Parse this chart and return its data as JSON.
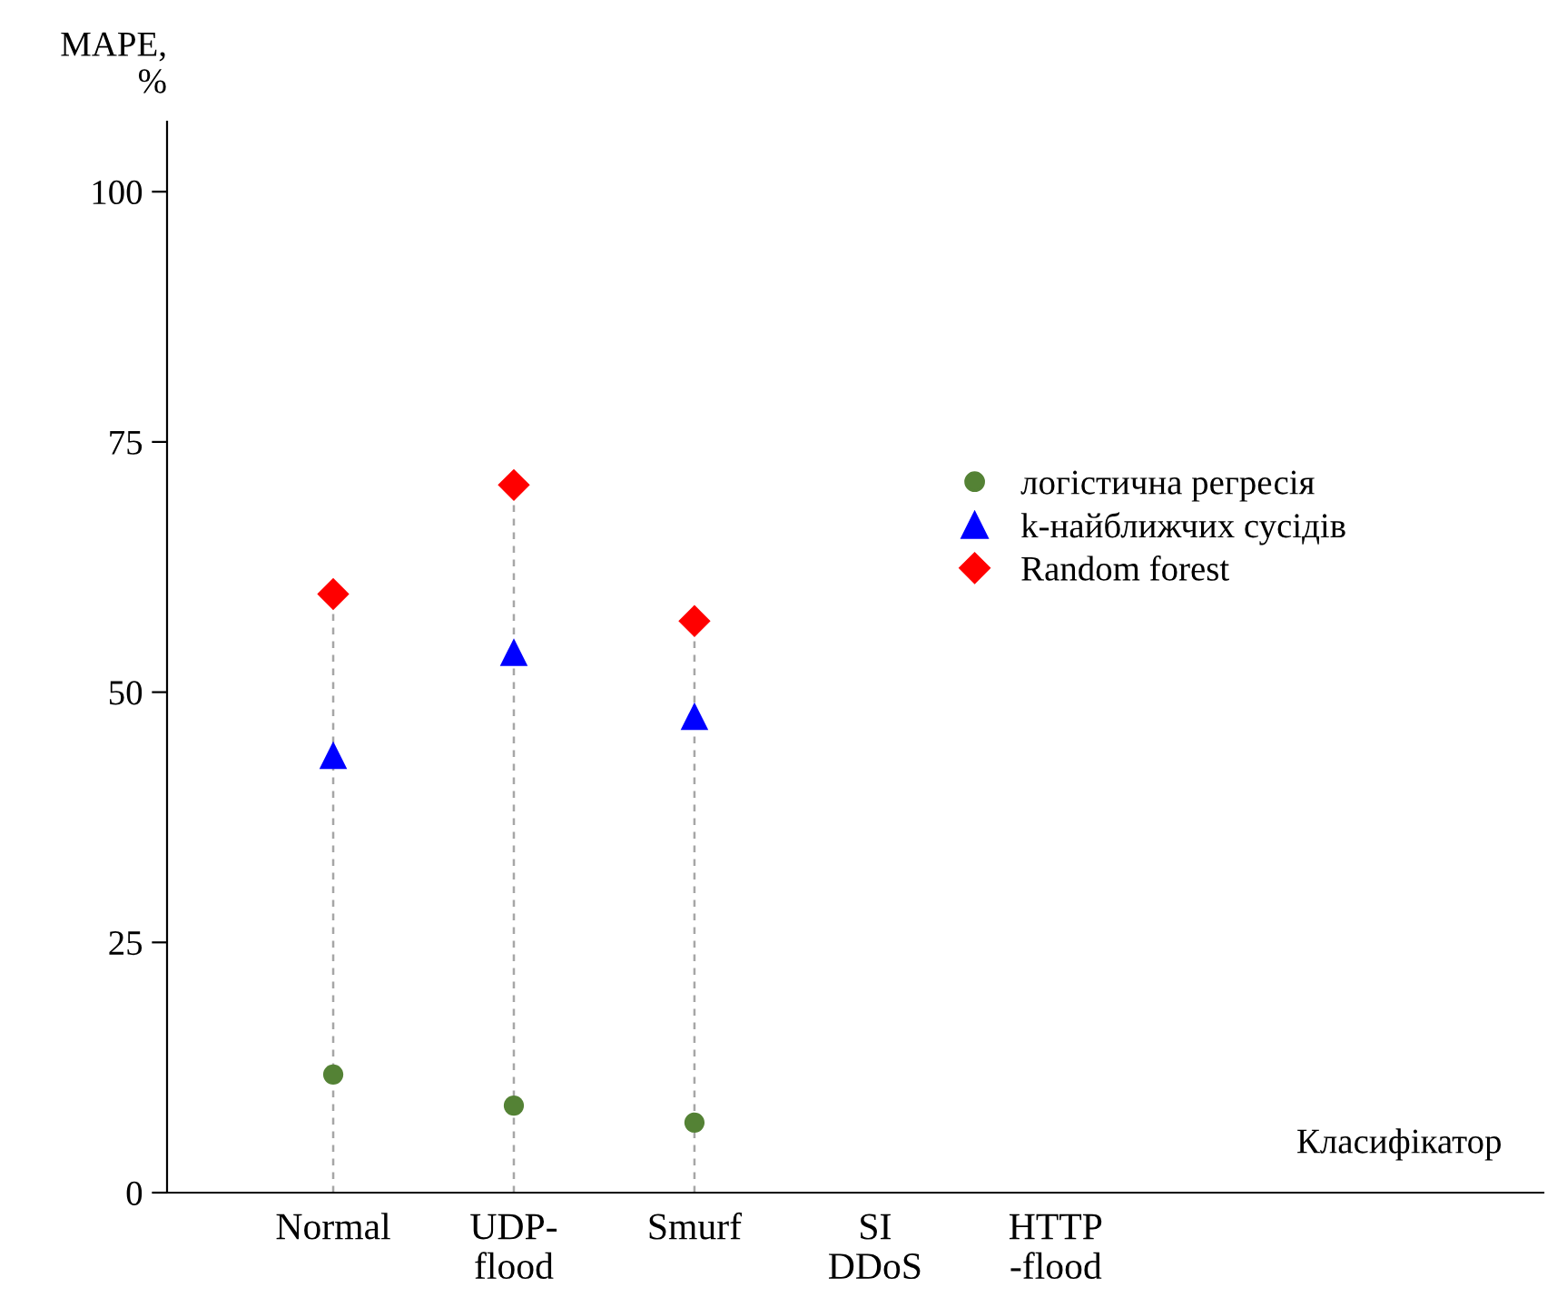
{
  "chart_data": {
    "type": "scatter",
    "ylabel": "MAPE,\n%",
    "xlabel": "Класифікатор",
    "categories": [
      "Normal",
      "UDP-\nflood",
      "Smurf",
      "SI\nDDoS",
      "HTTP\n-flood"
    ],
    "series": [
      {
        "name": "логістична регресія",
        "color": "#548235",
        "marker": "circle",
        "values": [
          11.8,
          8.7,
          7.0,
          null,
          null
        ]
      },
      {
        "name": "k-найближчих сусідів",
        "color": "#0000ff",
        "marker": "triangle",
        "values": [
          43.7,
          54.0,
          47.6,
          null,
          null
        ]
      },
      {
        "name": "Random forest",
        "type": "lollipop",
        "color": "#ff0000",
        "marker": "diamond",
        "line_style": "dashed",
        "values": [
          59.8,
          70.7,
          57.1,
          null,
          null
        ]
      }
    ],
    "ylim": [
      0,
      107
    ],
    "yticks": [
      0,
      25,
      50,
      75,
      100
    ],
    "grid": false,
    "legend": "right"
  }
}
